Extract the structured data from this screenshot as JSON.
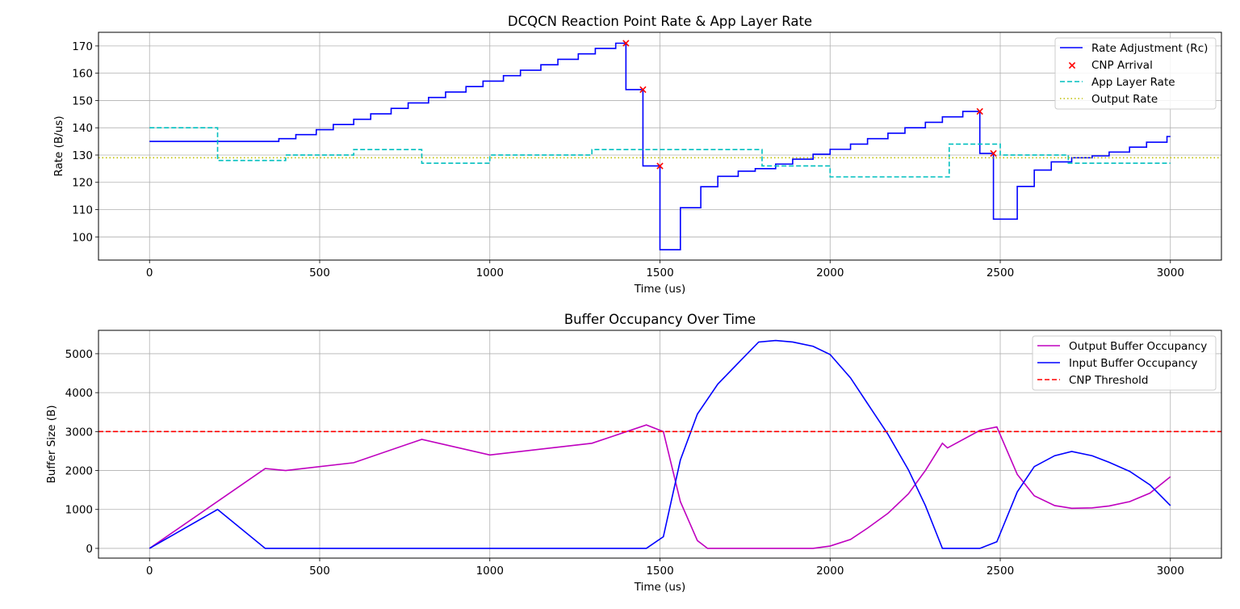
{
  "chart_data": [
    {
      "type": "line",
      "title": "DCQCN Reaction Point Rate & App Layer Rate",
      "xlabel": "Time (us)",
      "ylabel": "Rate (B/us)",
      "xlim": [
        -150,
        3150
      ],
      "ylim": [
        91.5,
        175
      ],
      "xticks": [
        0,
        500,
        1000,
        1500,
        2000,
        2500,
        3000
      ],
      "yticks": [
        100,
        110,
        120,
        130,
        140,
        150,
        160,
        170
      ],
      "grid": true,
      "legend_position": "top-right",
      "series": [
        {
          "name": "Rate Adjustment (Rc)",
          "style": "step",
          "color": "#0000ff",
          "dash": "solid",
          "x": [
            0,
            380,
            430,
            490,
            540,
            600,
            650,
            710,
            760,
            820,
            870,
            930,
            980,
            1040,
            1090,
            1150,
            1200,
            1260,
            1310,
            1370,
            1400,
            1450,
            1500,
            1560,
            1620,
            1670,
            1730,
            1780,
            1840,
            1890,
            1950,
            2000,
            2060,
            2110,
            2170,
            2220,
            2280,
            2330,
            2390,
            2440,
            2480,
            2550,
            2600,
            2650,
            2710,
            2770,
            2820,
            2880,
            2930,
            2990,
            3000
          ],
          "y": [
            135,
            136,
            137.5,
            139.3,
            141.2,
            143.1,
            145.1,
            147.1,
            149.1,
            151.1,
            153.1,
            155.1,
            157.1,
            159.1,
            161.1,
            163.1,
            165.1,
            167.1,
            169.1,
            171,
            154,
            126,
            95.3,
            110.7,
            118.4,
            122.2,
            124.1,
            125,
            126.7,
            128.5,
            130.3,
            132.1,
            134,
            136,
            138,
            140,
            142,
            144,
            146,
            130.6,
            106.5,
            118.5,
            124.5,
            127.5,
            129,
            129.7,
            131.1,
            132.9,
            134.7,
            136.8,
            136.8
          ]
        },
        {
          "name": "CNP Arrival",
          "style": "marker",
          "marker": "x",
          "color": "#ff0000",
          "x": [
            1400,
            1450,
            1500,
            2440,
            2480
          ],
          "y": [
            171,
            154,
            126,
            146,
            130.6
          ]
        },
        {
          "name": "App Layer Rate",
          "style": "step",
          "color": "#00bfbf",
          "dash": "dashed",
          "x": [
            0,
            200,
            400,
            600,
            800,
            1000,
            1300,
            1800,
            2000,
            2350,
            2500,
            2700,
            3000
          ],
          "y": [
            140,
            128,
            130,
            132,
            127,
            130,
            132,
            126,
            122,
            134,
            130,
            127,
            127
          ]
        },
        {
          "name": "Output Rate",
          "style": "hline",
          "color": "#bfbf00",
          "dash": "dotted",
          "x": [
            -150,
            3150
          ],
          "y": [
            129,
            129
          ]
        }
      ]
    },
    {
      "type": "line",
      "title": "Buffer Occupancy Over Time",
      "xlabel": "Time (us)",
      "ylabel": "Buffer Size (B)",
      "xlim": [
        -150,
        3150
      ],
      "ylim": [
        -250,
        5600
      ],
      "xticks": [
        0,
        500,
        1000,
        1500,
        2000,
        2500,
        3000
      ],
      "yticks": [
        0,
        1000,
        2000,
        3000,
        4000,
        5000
      ],
      "grid": true,
      "legend_position": "top-right",
      "series": [
        {
          "name": "Output Buffer Occupancy",
          "style": "line",
          "color": "#bf00bf",
          "dash": "solid",
          "x": [
            0,
            340,
            400,
            600,
            800,
            1000,
            1300,
            1460,
            1510,
            1560,
            1610,
            1640,
            1950,
            2000,
            2060,
            2110,
            2170,
            2230,
            2280,
            2330,
            2345,
            2440,
            2490,
            2550,
            2600,
            2660,
            2710,
            2770,
            2820,
            2880,
            2940,
            3000
          ],
          "y": [
            0,
            2050,
            2000,
            2200,
            2800,
            2400,
            2700,
            3170,
            3000,
            1200,
            200,
            0,
            0,
            60,
            230,
            520,
            900,
            1400,
            2000,
            2700,
            2580,
            3030,
            3120,
            1900,
            1350,
            1100,
            1030,
            1040,
            1090,
            1200,
            1420,
            1840
          ]
        },
        {
          "name": "Input Buffer Occupancy",
          "style": "line",
          "color": "#0000ff",
          "dash": "solid",
          "x": [
            0,
            200,
            340,
            1460,
            1510,
            1560,
            1610,
            1670,
            1730,
            1790,
            1840,
            1890,
            1950,
            2000,
            2060,
            2110,
            2170,
            2230,
            2280,
            2330,
            2440,
            2490,
            2550,
            2600,
            2660,
            2710,
            2770,
            2820,
            2880,
            2940,
            3000
          ],
          "y": [
            0,
            1000,
            0,
            0,
            300,
            2270,
            3450,
            4220,
            4760,
            5300,
            5340,
            5300,
            5190,
            4980,
            4380,
            3720,
            2930,
            2020,
            1100,
            0,
            0,
            170,
            1450,
            2100,
            2380,
            2490,
            2380,
            2210,
            1980,
            1630,
            1100
          ]
        },
        {
          "name": "CNP Threshold",
          "style": "hline",
          "color": "#ff0000",
          "dash": "dashed",
          "x": [
            -150,
            3150
          ],
          "y": [
            3000,
            3000
          ]
        }
      ]
    }
  ]
}
